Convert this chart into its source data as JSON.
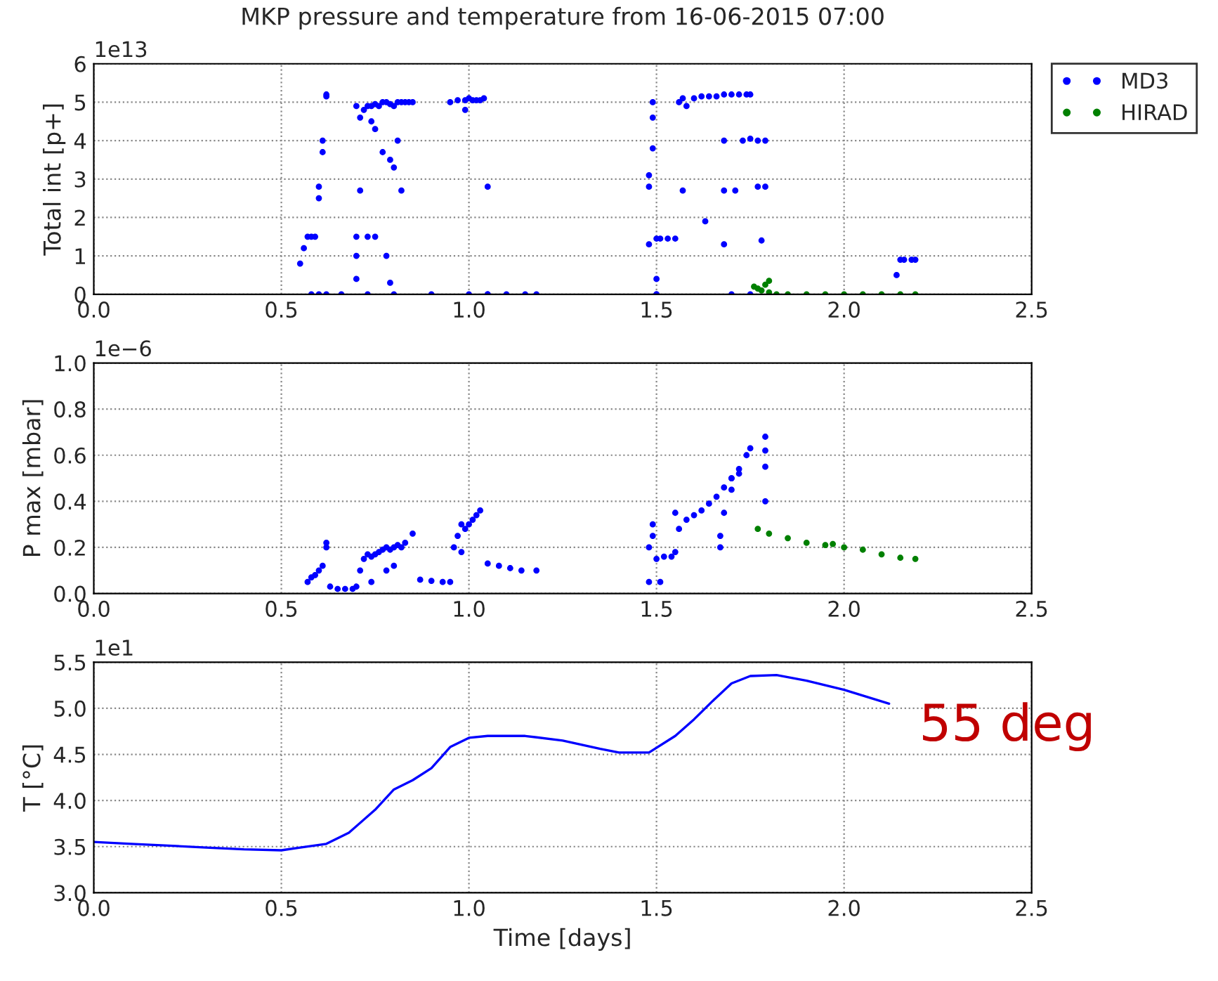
{
  "chart_data": [
    {
      "type": "scatter",
      "title": "MKP pressure and temperature from 16-06-2015 07:00",
      "ylabel": "Total int [p+]",
      "annotations": [
        "1e13"
      ],
      "xlim": [
        0.0,
        2.5
      ],
      "xticks": [
        {
          "value": 0,
          "label": "0.0"
        },
        0.5,
        {
          "value": 1,
          "label": "1.0"
        },
        1.5,
        {
          "value": 2,
          "label": "2.0"
        },
        2.5
      ],
      "ylim": [
        0,
        6
      ],
      "yticks": [
        0,
        1,
        2,
        3,
        4,
        5,
        6
      ],
      "grid": true,
      "legend": "right",
      "marker": "circle",
      "series": [
        {
          "name": "MD3",
          "color": "#0000ff",
          "x": [
            0.55,
            0.56,
            0.57,
            0.58,
            0.59,
            0.6,
            0.6,
            0.6,
            0.61,
            0.61,
            0.62,
            0.62,
            0.58,
            0.62,
            0.66,
            0.7,
            0.7,
            0.7,
            0.7,
            0.71,
            0.71,
            0.72,
            0.73,
            0.74,
            0.75,
            0.76,
            0.77,
            0.78,
            0.79,
            0.8,
            0.81,
            0.82,
            0.83,
            0.84,
            0.85,
            0.74,
            0.75,
            0.77,
            0.79,
            0.8,
            0.81,
            0.82,
            0.78,
            0.79,
            0.73,
            0.75,
            0.8,
            0.73,
            0.9,
            0.95,
            0.97,
            0.99,
            1.0,
            1.01,
            1.02,
            1.03,
            1.04,
            1.05,
            0.99,
            1.05,
            1.0,
            1.05,
            1.1,
            1.15,
            1.18,
            1.48,
            1.48,
            1.48,
            1.49,
            1.49,
            1.49,
            1.5,
            1.5,
            1.5,
            1.51,
            1.53,
            1.55,
            1.57,
            1.56,
            1.57,
            1.6,
            1.62,
            1.64,
            1.66,
            1.68,
            1.7,
            1.72,
            1.74,
            1.75,
            1.58,
            1.63,
            1.68,
            1.68,
            1.68,
            1.71,
            1.73,
            1.75,
            1.77,
            1.79,
            1.77,
            1.79,
            1.78,
            1.5,
            1.7,
            1.75,
            2.14,
            2.15,
            2.16,
            2.18,
            2.19
          ],
          "values": [
            0.8,
            1.2,
            1.5,
            1.5,
            1.5,
            2.5,
            2.8,
            0.0,
            3.7,
            4.0,
            5.2,
            5.15,
            0.0,
            0.0,
            0.0,
            1.5,
            1.0,
            0.4,
            4.9,
            4.6,
            2.7,
            4.8,
            4.9,
            4.9,
            4.95,
            4.9,
            5.0,
            5.0,
            4.95,
            4.9,
            5.0,
            5.0,
            5.0,
            5.0,
            5.0,
            4.5,
            4.3,
            3.7,
            3.5,
            3.3,
            4.0,
            2.7,
            1.0,
            0.3,
            1.5,
            1.5,
            0.0,
            0.0,
            0.0,
            5.0,
            5.05,
            5.05,
            5.1,
            5.05,
            5.05,
            5.05,
            5.1,
            2.8,
            4.8,
            0.0,
            0.0,
            0.0,
            0.0,
            0.0,
            0.0,
            3.1,
            2.8,
            1.3,
            3.8,
            4.6,
            5.0,
            1.45,
            0.0,
            0.4,
            1.45,
            1.45,
            1.45,
            2.7,
            5.0,
            5.1,
            5.1,
            5.15,
            5.15,
            5.15,
            5.2,
            5.2,
            5.2,
            5.2,
            5.2,
            4.9,
            1.9,
            1.3,
            2.7,
            4.0,
            2.7,
            4.0,
            4.05,
            4.0,
            4.0,
            2.8,
            2.8,
            1.4,
            0.0,
            0.0,
            0.0,
            0.5,
            0.9,
            0.9,
            0.9,
            0.9
          ]
        },
        {
          "name": "HIRAD",
          "color": "#008000",
          "x": [
            1.76,
            1.77,
            1.78,
            1.79,
            1.8,
            1.8,
            1.82,
            1.85,
            1.9,
            1.95,
            2.0,
            2.05,
            2.1,
            2.15,
            2.19
          ],
          "values": [
            0.2,
            0.15,
            0.1,
            0.25,
            0.35,
            0.05,
            0.0,
            0.0,
            0.0,
            0.0,
            0.0,
            0.0,
            0.0,
            0.0,
            0.0
          ]
        }
      ]
    },
    {
      "type": "scatter",
      "ylabel": "P max [mbar]",
      "annotations": [
        "1e−6"
      ],
      "xlim": [
        0.0,
        2.5
      ],
      "xticks": [
        {
          "value": 0,
          "label": "0.0"
        },
        0.5,
        {
          "value": 1,
          "label": "1.0"
        },
        1.5,
        {
          "value": 2,
          "label": "2.0"
        },
        2.5
      ],
      "ylim": [
        0.0,
        1.0
      ],
      "yticks": [
        {
          "value": 0,
          "label": "0.0"
        },
        0.2,
        0.4,
        0.6,
        0.8,
        {
          "value": 1,
          "label": "1.0"
        }
      ],
      "grid": true,
      "marker": "circle",
      "series": [
        {
          "color": "#0000ff",
          "x": [
            0.57,
            0.58,
            0.59,
            0.6,
            0.61,
            0.62,
            0.62,
            0.63,
            0.65,
            0.67,
            0.69,
            0.7,
            0.71,
            0.72,
            0.73,
            0.74,
            0.75,
            0.76,
            0.77,
            0.78,
            0.79,
            0.8,
            0.81,
            0.82,
            0.83,
            0.85,
            0.74,
            0.78,
            0.8,
            0.87,
            0.9,
            0.93,
            0.95,
            0.96,
            0.97,
            0.98,
            0.99,
            1.0,
            1.01,
            1.02,
            1.03,
            0.98,
            1.05,
            1.08,
            1.11,
            1.14,
            1.18,
            1.48,
            1.48,
            1.49,
            1.49,
            1.5,
            1.52,
            1.54,
            1.55,
            1.55,
            1.56,
            1.58,
            1.6,
            1.62,
            1.64,
            1.66,
            1.68,
            1.7,
            1.72,
            1.74,
            1.75,
            1.67,
            1.67,
            1.68,
            1.7,
            1.7,
            1.72,
            1.79,
            1.79,
            1.79,
            1.79,
            1.51
          ],
          "values": [
            0.05,
            0.07,
            0.08,
            0.1,
            0.12,
            0.2,
            0.22,
            0.03,
            0.02,
            0.02,
            0.02,
            0.03,
            0.1,
            0.15,
            0.17,
            0.16,
            0.17,
            0.18,
            0.19,
            0.2,
            0.19,
            0.2,
            0.21,
            0.2,
            0.22,
            0.26,
            0.05,
            0.1,
            0.12,
            0.06,
            0.055,
            0.05,
            0.05,
            0.2,
            0.25,
            0.3,
            0.28,
            0.3,
            0.32,
            0.34,
            0.36,
            0.18,
            0.13,
            0.12,
            0.11,
            0.1,
            0.1,
            0.05,
            0.2,
            0.3,
            0.25,
            0.15,
            0.16,
            0.16,
            0.18,
            0.35,
            0.28,
            0.32,
            0.34,
            0.36,
            0.39,
            0.42,
            0.46,
            0.5,
            0.54,
            0.6,
            0.63,
            0.2,
            0.25,
            0.35,
            0.45,
            0.5,
            0.52,
            0.68,
            0.62,
            0.55,
            0.4,
            0.05
          ]
        },
        {
          "color": "#008000",
          "x": [
            1.77,
            1.8,
            1.85,
            1.9,
            1.95,
            1.97,
            2.0,
            2.05,
            2.1,
            2.15,
            2.19
          ],
          "values": [
            0.28,
            0.26,
            0.24,
            0.22,
            0.21,
            0.215,
            0.2,
            0.19,
            0.17,
            0.155,
            0.15
          ]
        }
      ]
    },
    {
      "type": "line",
      "xlabel": "Time [days]",
      "ylabel": "T [°C]",
      "annotations": [
        "1e1",
        "55 deg"
      ],
      "xlim": [
        0.0,
        2.5
      ],
      "xticks": [
        {
          "value": 0,
          "label": "0.0"
        },
        0.5,
        {
          "value": 1,
          "label": "1.0"
        },
        1.5,
        {
          "value": 2,
          "label": "2.0"
        },
        2.5
      ],
      "ylim": [
        3.0,
        5.5
      ],
      "yticks": [
        {
          "value": 3,
          "label": "3.0"
        },
        3.5,
        {
          "value": 4,
          "label": "4.0"
        },
        4.5,
        {
          "value": 5,
          "label": "5.0"
        },
        5.5
      ],
      "grid": true,
      "line_style": "solid",
      "series": [
        {
          "color": "#0000ff",
          "x": [
            0.0,
            0.1,
            0.2,
            0.3,
            0.4,
            0.5,
            0.55,
            0.62,
            0.68,
            0.75,
            0.8,
            0.85,
            0.9,
            0.95,
            1.0,
            1.05,
            1.15,
            1.25,
            1.35,
            1.4,
            1.48,
            1.55,
            1.6,
            1.65,
            1.7,
            1.75,
            1.82,
            1.9,
            2.0,
            2.12
          ],
          "values": [
            3.55,
            3.53,
            3.51,
            3.49,
            3.47,
            3.46,
            3.49,
            3.53,
            3.65,
            3.9,
            4.12,
            4.22,
            4.35,
            4.58,
            4.68,
            4.7,
            4.7,
            4.65,
            4.56,
            4.52,
            4.52,
            4.7,
            4.88,
            5.08,
            5.27,
            5.35,
            5.36,
            5.3,
            5.2,
            5.05
          ]
        }
      ]
    }
  ]
}
